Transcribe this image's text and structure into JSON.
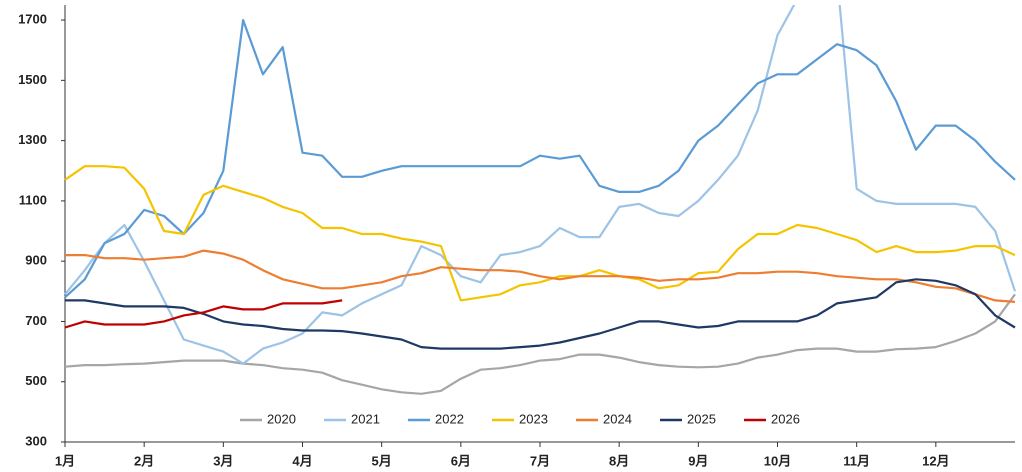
{
  "chart_data": {
    "type": "line",
    "categories": [
      "1月",
      null,
      null,
      null,
      "2月",
      null,
      null,
      null,
      "3月",
      null,
      null,
      null,
      "4月",
      null,
      null,
      null,
      "5月",
      null,
      null,
      null,
      "6月",
      null,
      null,
      null,
      "7月",
      null,
      null,
      null,
      "8月",
      null,
      null,
      null,
      "9月",
      null,
      null,
      null,
      "10月",
      null,
      null,
      null,
      "11月",
      null,
      null,
      null,
      "12月",
      null,
      null,
      null,
      null
    ],
    "ylim": [
      300,
      1750
    ],
    "yticks": [
      300,
      500,
      700,
      900,
      1100,
      1300,
      1500,
      1700
    ],
    "grid": false,
    "legend": "bottom",
    "series": [
      {
        "name": "2020",
        "color": "#a6a6a6",
        "values": [
          550,
          555,
          555,
          558,
          560,
          565,
          570,
          570,
          570,
          560,
          555,
          545,
          540,
          530,
          505,
          490,
          475,
          465,
          460,
          470,
          510,
          540,
          545,
          555,
          570,
          575,
          590,
          590,
          580,
          565,
          555,
          550,
          548,
          550,
          560,
          580,
          590,
          605,
          610,
          610,
          600,
          600,
          608,
          610,
          615,
          635,
          660,
          700,
          790
        ]
      },
      {
        "name": "2021",
        "color": "#9dc3e6",
        "values": [
          790,
          870,
          960,
          1020,
          900,
          770,
          640,
          620,
          600,
          560,
          610,
          630,
          660,
          730,
          720,
          760,
          790,
          820,
          950,
          920,
          850,
          830,
          920,
          930,
          950,
          1010,
          980,
          980,
          1080,
          1090,
          1060,
          1050,
          1100,
          1170,
          1250,
          1400,
          1650,
          1770,
          1850,
          1850,
          1140,
          1100,
          1090,
          1090,
          1090,
          1090,
          1080,
          1000,
          800
        ]
      },
      {
        "name": "2022",
        "color": "#5b9bd5",
        "values": [
          780,
          840,
          960,
          990,
          1070,
          1050,
          990,
          1060,
          1200,
          1700,
          1520,
          1610,
          1260,
          1250,
          1180,
          1180,
          1200,
          1215,
          1215,
          1215,
          1215,
          1215,
          1215,
          1215,
          1250,
          1240,
          1250,
          1150,
          1130,
          1130,
          1150,
          1200,
          1300,
          1350,
          1420,
          1490,
          1520,
          1520,
          1570,
          1620,
          1600,
          1550,
          1430,
          1270,
          1350,
          1350,
          1300,
          1230,
          1170
        ]
      },
      {
        "name": "2023",
        "color": "#f5c400",
        "values": [
          1170,
          1215,
          1215,
          1210,
          1140,
          1000,
          990,
          1120,
          1150,
          1130,
          1110,
          1080,
          1060,
          1010,
          1010,
          990,
          990,
          975,
          965,
          950,
          770,
          780,
          790,
          820,
          830,
          850,
          850,
          870,
          850,
          840,
          810,
          820,
          860,
          865,
          940,
          990,
          990,
          1020,
          1010,
          990,
          970,
          930,
          950,
          930,
          930,
          935,
          950,
          950,
          920
        ]
      },
      {
        "name": "2024",
        "color": "#ed7d31",
        "values": [
          920,
          920,
          910,
          910,
          905,
          910,
          915,
          935,
          925,
          905,
          870,
          840,
          825,
          810,
          810,
          820,
          830,
          850,
          860,
          880,
          875,
          870,
          870,
          865,
          850,
          840,
          850,
          850,
          850,
          845,
          835,
          840,
          840,
          845,
          860,
          860,
          865,
          865,
          860,
          850,
          845,
          840,
          840,
          830,
          815,
          810,
          790,
          770,
          765
        ]
      },
      {
        "name": "2025",
        "color": "#1f3864",
        "values": [
          770,
          770,
          760,
          750,
          750,
          750,
          745,
          725,
          700,
          690,
          685,
          675,
          670,
          670,
          668,
          660,
          650,
          640,
          615,
          610,
          610,
          610,
          610,
          615,
          620,
          630,
          645,
          660,
          680,
          700,
          700,
          690,
          680,
          685,
          700,
          700,
          700,
          700,
          720,
          760,
          770,
          780,
          830,
          840,
          835,
          820,
          790,
          720,
          680
        ]
      },
      {
        "name": "2026",
        "color": "#c00000",
        "values": [
          680,
          700,
          690,
          690,
          690,
          700,
          720,
          730,
          750,
          740,
          740,
          760,
          760,
          760,
          770,
          null,
          null,
          null,
          null,
          null,
          null,
          null,
          null,
          null,
          null,
          null,
          null,
          null,
          null,
          null,
          null,
          null,
          null,
          null,
          null,
          null,
          null,
          null,
          null,
          null,
          null,
          null,
          null,
          null,
          null,
          null,
          null,
          null,
          null
        ]
      }
    ]
  }
}
